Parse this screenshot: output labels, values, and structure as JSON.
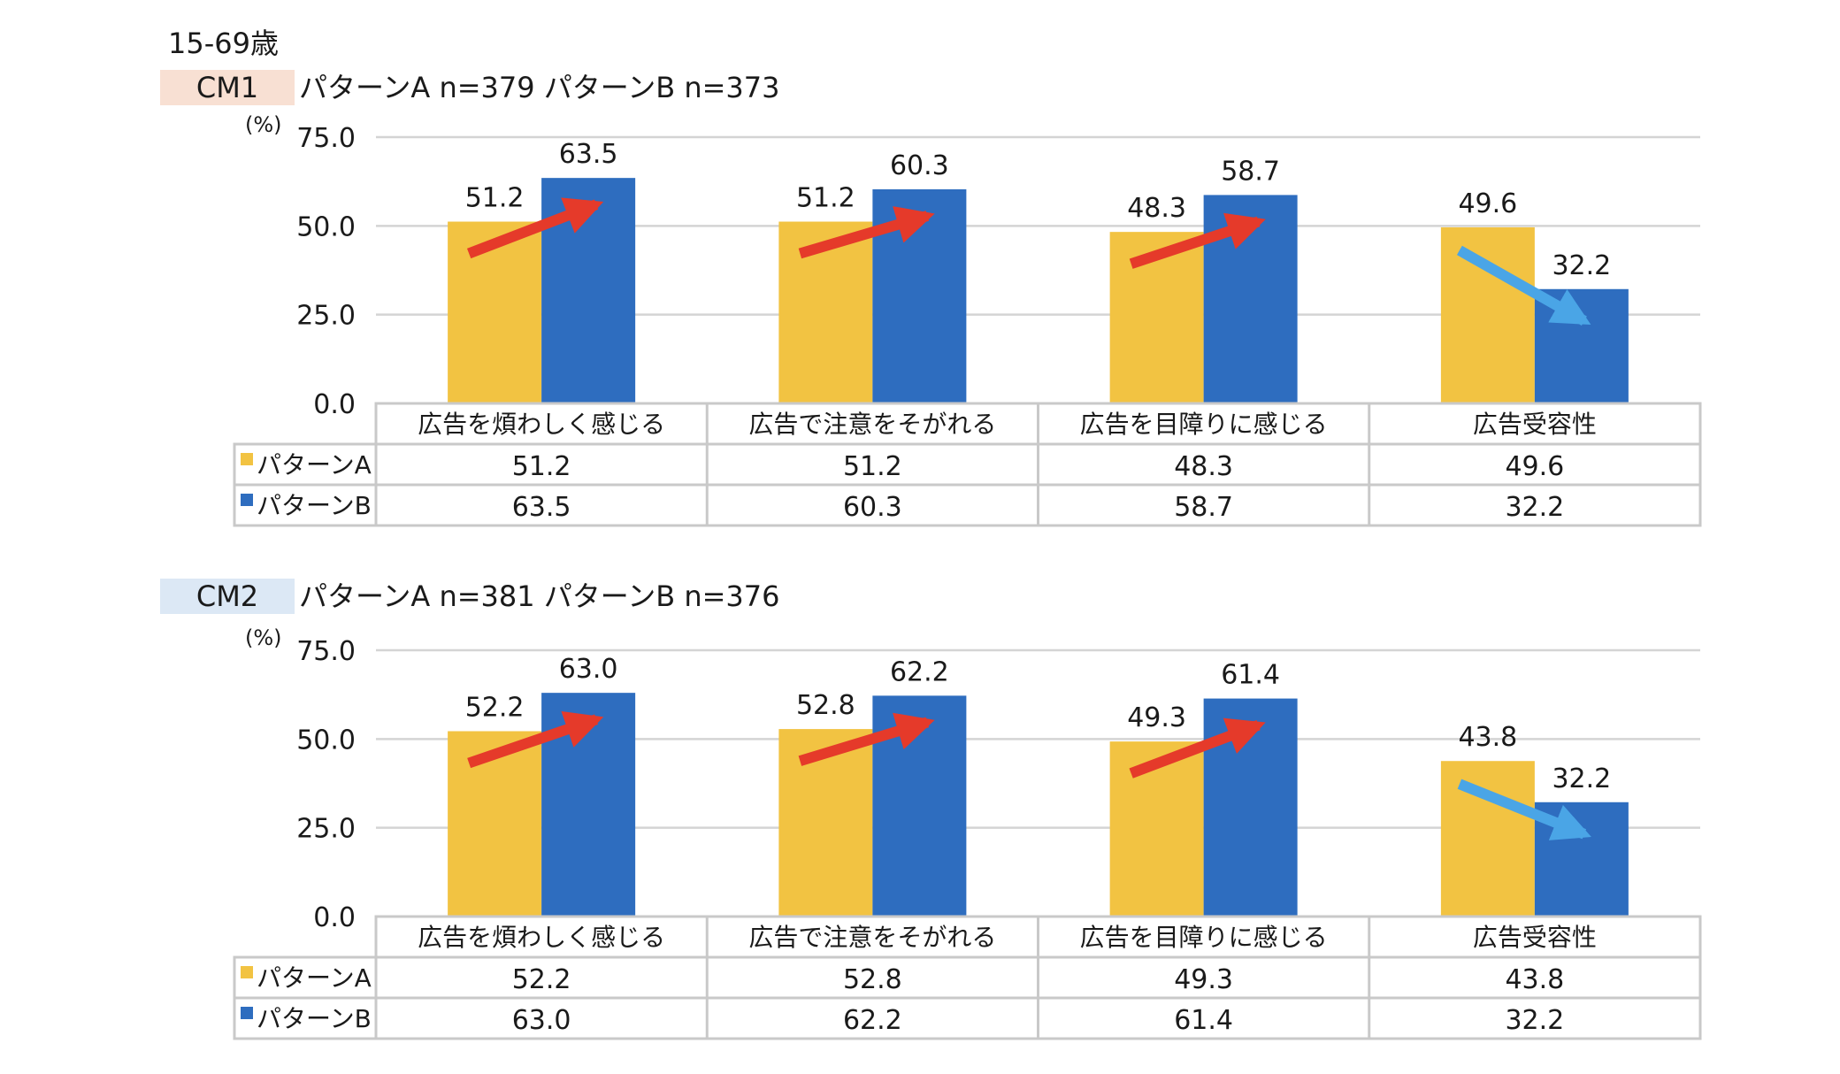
{
  "age_label": "15-69歳",
  "colors": {
    "pattern_a": "#F2C342",
    "pattern_b": "#2E6DBF",
    "arrow_up": "#E53A2A",
    "arrow_down": "#4AA5E6",
    "cm1_badge_bg": "#F8E0D3",
    "cm2_badge_bg": "#DCE8F5",
    "grid": "#d4d4d4",
    "table_border": "#c9c9c9"
  },
  "arrows": [
    "up",
    "up",
    "up",
    "down"
  ],
  "chart_data": [
    {
      "type": "bar",
      "panel_label": "CM1",
      "sample_text": "パターンA n=379 パターンB n=373",
      "unit_label": "(%)",
      "categories": [
        "広告を煩わしく感じる",
        "広告で注意をそがれる",
        "広告を目障りに感じる",
        "広告受容性"
      ],
      "series": [
        {
          "name": "パターンA",
          "values": [
            51.2,
            51.2,
            48.3,
            49.6
          ]
        },
        {
          "name": "パターンB",
          "values": [
            63.5,
            60.3,
            58.7,
            32.2
          ]
        }
      ],
      "ylim": [
        0,
        75
      ],
      "yticks": [
        "0.0",
        "25.0",
        "50.0",
        "75.0"
      ],
      "grid": true,
      "legend": "data-table"
    },
    {
      "type": "bar",
      "panel_label": "CM2",
      "sample_text": "パターンA n=381 パターンB n=376",
      "unit_label": "(%)",
      "categories": [
        "広告を煩わしく感じる",
        "広告で注意をそがれる",
        "広告を目障りに感じる",
        "広告受容性"
      ],
      "series": [
        {
          "name": "パターンA",
          "values": [
            52.2,
            52.8,
            49.3,
            43.8
          ]
        },
        {
          "name": "パターンB",
          "values": [
            63.0,
            62.2,
            61.4,
            32.2
          ]
        }
      ],
      "ylim": [
        0,
        75
      ],
      "yticks": [
        "0.0",
        "25.0",
        "50.0",
        "75.0"
      ],
      "grid": true,
      "legend": "data-table"
    }
  ]
}
